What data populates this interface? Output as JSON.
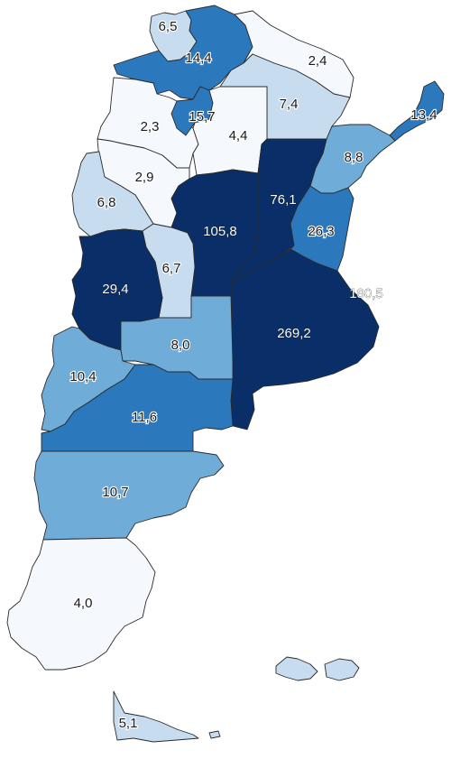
{
  "colors": {
    "lightest": "#f5f9fe",
    "light": "#c8dcf0",
    "medium": "#6fadd8",
    "strong": "#2b78bd",
    "darkest": "#0a2e68",
    "border": "#2b2b2b"
  },
  "regions": [
    {
      "id": "jujuy",
      "value": "6,5",
      "level": "light"
    },
    {
      "id": "salta",
      "value": "14,4",
      "level": "strong"
    },
    {
      "id": "formosa",
      "value": "2,4",
      "level": "lightest"
    },
    {
      "id": "chaco",
      "value": "7,4",
      "level": "light"
    },
    {
      "id": "misiones",
      "value": "13,4",
      "level": "strong"
    },
    {
      "id": "catamarca",
      "value": "2,3",
      "level": "lightest"
    },
    {
      "id": "tucuman",
      "value": "15,7",
      "level": "strong"
    },
    {
      "id": "santiago-del-estero",
      "value": "4,4",
      "level": "lightest"
    },
    {
      "id": "corrientes",
      "value": "8,8",
      "level": "medium"
    },
    {
      "id": "la-rioja",
      "value": "2,9",
      "level": "lightest"
    },
    {
      "id": "santa-fe",
      "value": "76,1",
      "level": "darkest"
    },
    {
      "id": "san-juan",
      "value": "6,8",
      "level": "light"
    },
    {
      "id": "cordoba",
      "value": "105,8",
      "level": "darkest"
    },
    {
      "id": "entre-rios",
      "value": "26,3",
      "level": "strong"
    },
    {
      "id": "san-luis",
      "value": "6,7",
      "level": "light"
    },
    {
      "id": "mendoza",
      "value": "29,4",
      "level": "darkest"
    },
    {
      "id": "caba",
      "value": "180,5",
      "level": "darkest"
    },
    {
      "id": "buenos-aires",
      "value": "269,2",
      "level": "darkest"
    },
    {
      "id": "la-pampa",
      "value": "8,0",
      "level": "medium"
    },
    {
      "id": "neuquen",
      "value": "10,4",
      "level": "medium"
    },
    {
      "id": "rio-negro",
      "value": "11,6",
      "level": "strong"
    },
    {
      "id": "chubut",
      "value": "10,7",
      "level": "medium"
    },
    {
      "id": "santa-cruz",
      "value": "4,0",
      "level": "lightest"
    },
    {
      "id": "tierra-del-fuego",
      "value": "5,1",
      "level": "light"
    },
    {
      "id": "islas-malvinas",
      "value": "",
      "level": "light"
    }
  ]
}
